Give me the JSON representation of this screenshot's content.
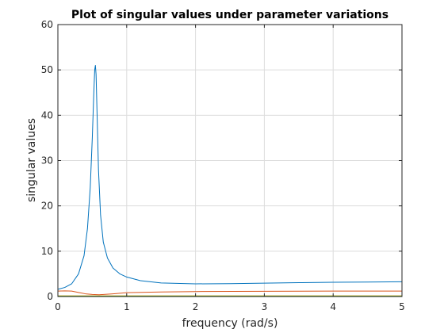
{
  "figure_colors": {
    "background": "#ffffff",
    "axes_edge": "#262626",
    "grid": "#dcdcdc"
  },
  "chart_data": {
    "type": "line",
    "title": "Plot of singular values under parameter variations",
    "xlabel": "frequency (rad/s)",
    "ylabel": "singular values",
    "xlim": [
      0,
      5
    ],
    "ylim": [
      0,
      60
    ],
    "xticks": [
      0,
      1,
      2,
      3,
      4,
      5
    ],
    "yticks": [
      0,
      10,
      20,
      30,
      40,
      50,
      60
    ],
    "grid": true,
    "legend": "none",
    "series": [
      {
        "color": "#0072BD",
        "points": [
          [
            0,
            1.6
          ],
          [
            0.1,
            2.0
          ],
          [
            0.2,
            2.8
          ],
          [
            0.3,
            5.0
          ],
          [
            0.38,
            9.0
          ],
          [
            0.43,
            15.0
          ],
          [
            0.47,
            24.0
          ],
          [
            0.5,
            35.0
          ],
          [
            0.52,
            44.0
          ],
          [
            0.535,
            50.0
          ],
          [
            0.545,
            51.0
          ],
          [
            0.555,
            49.0
          ],
          [
            0.57,
            40.0
          ],
          [
            0.59,
            28.0
          ],
          [
            0.62,
            18.0
          ],
          [
            0.66,
            12.0
          ],
          [
            0.72,
            8.5
          ],
          [
            0.8,
            6.3
          ],
          [
            0.9,
            5.0
          ],
          [
            1.0,
            4.3
          ],
          [
            1.2,
            3.5
          ],
          [
            1.5,
            3.0
          ],
          [
            2.0,
            2.8
          ],
          [
            2.5,
            2.85
          ],
          [
            3.0,
            2.95
          ],
          [
            3.5,
            3.05
          ],
          [
            4.0,
            3.15
          ],
          [
            4.5,
            3.2
          ],
          [
            5.0,
            3.25
          ]
        ]
      },
      {
        "color": "#D95319",
        "points": [
          [
            0,
            1.2
          ],
          [
            0.1,
            1.25
          ],
          [
            0.2,
            1.2
          ],
          [
            0.3,
            0.9
          ],
          [
            0.4,
            0.6
          ],
          [
            0.5,
            0.45
          ],
          [
            0.6,
            0.4
          ],
          [
            0.8,
            0.6
          ],
          [
            1.0,
            0.85
          ],
          [
            1.5,
            1.0
          ],
          [
            2.0,
            1.1
          ],
          [
            3.0,
            1.15
          ],
          [
            4.0,
            1.2
          ],
          [
            5.0,
            1.2
          ]
        ]
      },
      {
        "color": "#EDB120",
        "points": [
          [
            0,
            0.15
          ],
          [
            5.0,
            0.15
          ]
        ]
      },
      {
        "color": "#77AC30",
        "points": [
          [
            0,
            0.1
          ],
          [
            5.0,
            0.1
          ]
        ]
      }
    ]
  }
}
